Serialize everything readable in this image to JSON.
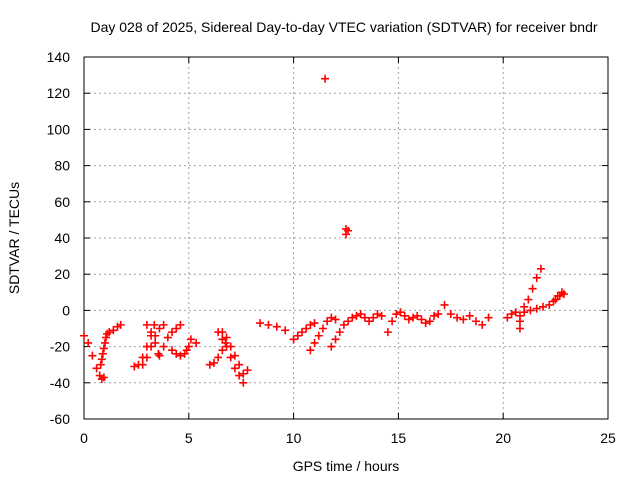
{
  "chart_data": {
    "type": "scatter",
    "title": "Day 028 of 2025, Sidereal Day-to-day VTEC variation (SDTVAR) for receiver bndr",
    "xlabel": "GPS time / hours",
    "ylabel": "SDTVAR / TECUs",
    "xlim": [
      0,
      25
    ],
    "ylim": [
      -60,
      140
    ],
    "xticks": [
      0,
      5,
      10,
      15,
      20,
      25
    ],
    "yticks": [
      -60,
      -40,
      -20,
      0,
      20,
      40,
      60,
      80,
      100,
      120,
      140
    ],
    "grid": true,
    "marker": "+",
    "series": [
      {
        "name": "SDTVAR",
        "color": "#ff0000",
        "x": [
          0.0,
          0.2,
          0.4,
          0.6,
          0.75,
          0.85,
          0.95,
          0.8,
          0.85,
          0.9,
          0.95,
          1.0,
          1.05,
          1.1,
          1.2,
          1.4,
          1.6,
          1.75,
          2.4,
          2.6,
          2.8,
          3.0,
          3.2,
          3.35,
          2.8,
          3.0,
          3.2,
          3.4,
          3.6,
          3.8,
          3.0,
          3.2,
          3.4,
          3.55,
          3.6,
          3.8,
          4.0,
          4.2,
          4.4,
          4.6,
          4.2,
          4.4,
          4.6,
          4.8,
          4.9,
          5.0,
          5.1,
          5.35,
          6.0,
          6.2,
          6.4,
          6.6,
          6.75,
          6.4,
          6.6,
          6.8,
          7.0,
          7.2,
          7.4,
          7.6,
          6.6,
          6.8,
          7.0,
          7.2,
          7.4,
          7.6,
          7.8,
          8.4,
          8.8,
          9.2,
          9.6,
          10.0,
          10.2,
          10.4,
          10.6,
          10.8,
          11.0,
          10.8,
          11.0,
          11.2,
          11.4,
          11.6,
          11.8,
          12.0,
          11.5,
          12.5,
          12.5,
          12.6,
          11.8,
          12.0,
          12.2,
          12.4,
          12.6,
          12.8,
          13.0,
          13.2,
          13.4,
          13.6,
          13.8,
          14.0,
          14.2,
          14.5,
          14.7,
          14.9,
          15.1,
          15.3,
          15.5,
          15.7,
          15.9,
          16.1,
          16.3,
          16.5,
          16.7,
          16.9,
          17.2,
          17.5,
          17.8,
          18.1,
          18.4,
          18.7,
          19.0,
          19.3,
          20.2,
          20.4,
          20.6,
          20.8,
          20.8,
          20.8,
          21.0,
          21.2,
          21.4,
          21.6,
          21.8,
          21.0,
          21.3,
          21.6,
          21.9,
          22.2,
          22.4,
          22.6,
          22.8,
          22.5,
          22.7,
          22.9
        ],
        "y": [
          -14,
          -18,
          -25,
          -32,
          -36,
          -38,
          -37,
          -30,
          -27,
          -24,
          -21,
          -18,
          -15,
          -13,
          -12,
          -11,
          -9,
          -8,
          -31,
          -30,
          -26,
          -20,
          -14,
          -8,
          -30,
          -26,
          -20,
          -14,
          -10,
          -8,
          -8,
          -12,
          -18,
          -24,
          -25,
          -20,
          -15,
          -12,
          -10,
          -8,
          -22,
          -24,
          -25,
          -24,
          -22,
          -20,
          -16,
          -18,
          -30,
          -29,
          -26,
          -22,
          -18,
          -12,
          -16,
          -20,
          -26,
          -32,
          -36,
          -40,
          -12,
          -15,
          -20,
          -25,
          -30,
          -35,
          -33,
          -7,
          -8,
          -9,
          -11,
          -16,
          -14,
          -12,
          -10,
          -8,
          -7,
          -22,
          -18,
          -14,
          -10,
          -6,
          -4,
          -5,
          128,
          42,
          45,
          44,
          -20,
          -16,
          -12,
          -8,
          -6,
          -4,
          -3,
          -2,
          -4,
          -6,
          -4,
          -2,
          -3,
          -12,
          -6,
          -2,
          -1,
          -3,
          -5,
          -4,
          -3,
          -5,
          -7,
          -6,
          -3,
          -2,
          3,
          -2,
          -4,
          -5,
          -3,
          -6,
          -8,
          -4,
          -4,
          -2,
          -1,
          -3,
          -6,
          -10,
          2,
          6,
          12,
          18,
          23,
          -1,
          0,
          1,
          2,
          3,
          5,
          8,
          10,
          6,
          8,
          9
        ]
      }
    ]
  }
}
